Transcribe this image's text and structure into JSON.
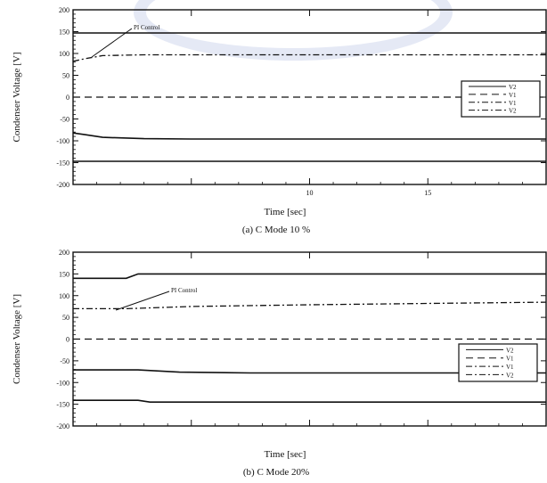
{
  "figure": {
    "panels": [
      {
        "ylabel": "Condenser Voltage [V]",
        "xlabel": "Time [sec]",
        "caption": "(a) C Mode 10 %",
        "annotation": "PI Control",
        "legend": [
          "V2",
          "V1",
          "V1",
          "V2"
        ]
      },
      {
        "ylabel": "Condenser Voltage [V]",
        "xlabel": "Time [sec]",
        "caption": "(b) C Mode 20%",
        "annotation": "PI Control",
        "legend": [
          "V2",
          "V1",
          "V1",
          "V2"
        ]
      }
    ]
  },
  "chart_data": [
    {
      "type": "line",
      "title": "",
      "xlabel": "Time [sec]",
      "ylabel": "Condenser Voltage [V]",
      "ylim": [
        -200,
        200
      ],
      "yticks": [
        200,
        150,
        100,
        50,
        0,
        -50,
        -100,
        -150,
        -200
      ],
      "ytick_labels": [
        "200",
        "150",
        "100",
        "50",
        "0",
        "-50",
        "-100",
        "-150",
        "-200"
      ],
      "xlim": [
        0,
        4
      ],
      "xticks": [
        1,
        2,
        3
      ],
      "xtick_labels": [
        "",
        "10",
        "15"
      ],
      "grid": false,
      "legend": "right",
      "annotation": "PI Control",
      "series": [
        {
          "style": "solid",
          "x": [
            0,
            4
          ],
          "y": [
            147,
            147
          ]
        },
        {
          "style": "dashdot",
          "x": [
            0,
            0.1,
            0.25,
            0.6,
            1,
            2,
            3,
            4
          ],
          "y": [
            82,
            88,
            95,
            97,
            97,
            97,
            97,
            97
          ]
        },
        {
          "style": "dashed",
          "x": [
            0,
            4
          ],
          "y": [
            0,
            0
          ]
        },
        {
          "style": "solid",
          "x": [
            0,
            0.1,
            0.25,
            0.6,
            1,
            2,
            3,
            4
          ],
          "y": [
            -82,
            -86,
            -92,
            -95,
            -96,
            -96,
            -96,
            -96
          ]
        },
        {
          "style": "solid",
          "x": [
            0,
            4
          ],
          "y": [
            -147,
            -147
          ]
        }
      ]
    },
    {
      "type": "line",
      "title": "",
      "xlabel": "Time [sec]",
      "ylabel": "Condenser Voltage [V]",
      "ylim": [
        -200,
        200
      ],
      "yticks": [
        200,
        150,
        100,
        50,
        0,
        -50,
        -100,
        -150,
        -200
      ],
      "ytick_labels": [
        "200",
        "150",
        "100",
        "50",
        "0",
        "-50",
        "-100",
        "-150",
        "-200"
      ],
      "xlim": [
        0,
        4
      ],
      "xticks": [
        1,
        2,
        3
      ],
      "xtick_labels": [
        "",
        "",
        ""
      ],
      "grid": false,
      "legend": "right",
      "annotation": "PI Control",
      "series": [
        {
          "style": "solid",
          "x": [
            0,
            0.45,
            0.55,
            1,
            2,
            3,
            4
          ],
          "y": [
            140,
            140,
            150,
            150,
            150,
            150,
            150
          ]
        },
        {
          "style": "dashdot",
          "x": [
            0,
            0.45,
            1,
            2,
            3,
            4
          ],
          "y": [
            70,
            70,
            75,
            79,
            82,
            85
          ]
        },
        {
          "style": "dashed",
          "x": [
            0,
            4
          ],
          "y": [
            0,
            0
          ]
        },
        {
          "style": "solid",
          "x": [
            0,
            0.55,
            0.9,
            1.5,
            2,
            3,
            4
          ],
          "y": [
            -71,
            -71,
            -76,
            -78,
            -78,
            -78,
            -78
          ]
        },
        {
          "style": "solid",
          "x": [
            0,
            0.55,
            0.65,
            1,
            2,
            3,
            4
          ],
          "y": [
            -141,
            -141,
            -145,
            -145,
            -145,
            -145,
            -145
          ]
        }
      ]
    }
  ]
}
